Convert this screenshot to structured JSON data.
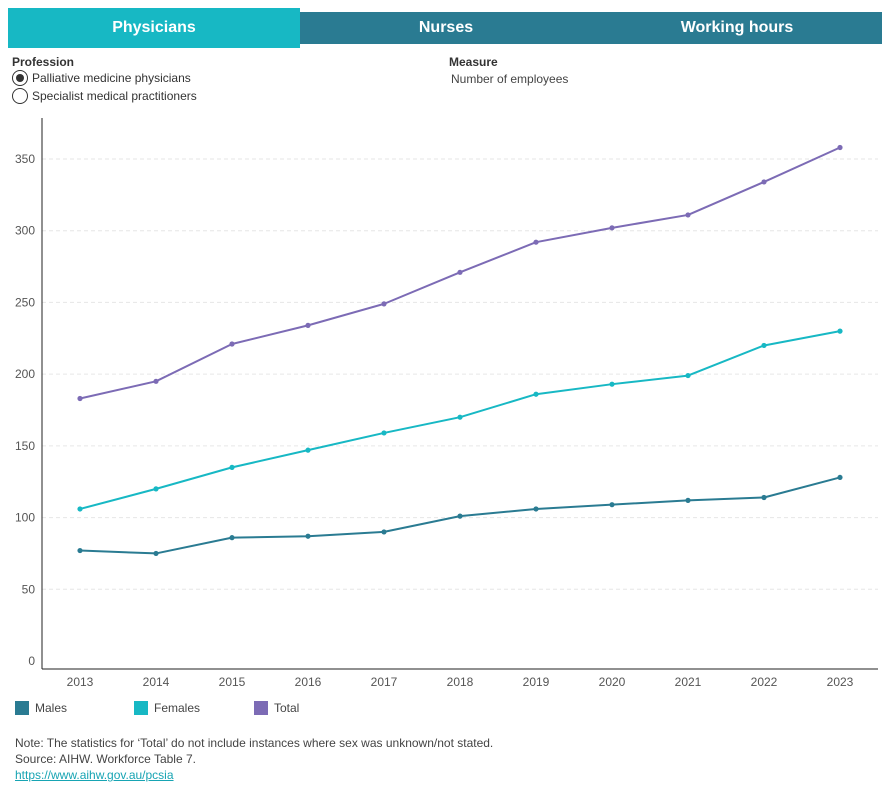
{
  "tabs": [
    {
      "label": "Physicians",
      "active": true
    },
    {
      "label": "Nurses",
      "active": false
    },
    {
      "label": "Working hours",
      "active": false
    }
  ],
  "profession": {
    "title": "Profession",
    "options": [
      {
        "label": "Palliative medicine physicians",
        "selected": true
      },
      {
        "label": "Specialist medical practitioners",
        "selected": false
      }
    ]
  },
  "measure": {
    "title": "Measure",
    "value": "Number of employees"
  },
  "colors": {
    "males": "#2a7b92",
    "females": "#17b8c4",
    "total": "#7c6bb5"
  },
  "chart_data": {
    "type": "line",
    "title": "",
    "xlabel": "",
    "ylabel": "",
    "ylim": [
      0,
      380
    ],
    "yticks": [
      0,
      50,
      100,
      150,
      200,
      250,
      300,
      350
    ],
    "grid": true,
    "legend": "bottom-left",
    "x": [
      "2013",
      "2014",
      "2015",
      "2016",
      "2017",
      "2018",
      "2019",
      "2020",
      "2021",
      "2022",
      "2023"
    ],
    "series": [
      {
        "name": "Males",
        "color": "#2a7b92",
        "values": [
          77,
          75,
          86,
          87,
          90,
          101,
          106,
          109,
          112,
          114,
          128
        ]
      },
      {
        "name": "Females",
        "color": "#17b8c4",
        "values": [
          106,
          120,
          135,
          147,
          159,
          170,
          186,
          193,
          199,
          220,
          230
        ]
      },
      {
        "name": "Total",
        "color": "#7c6bb5",
        "values": [
          183,
          195,
          221,
          234,
          249,
          271,
          292,
          302,
          311,
          334,
          358
        ]
      }
    ]
  },
  "notes": {
    "line1": "Note: The statistics for ‘Total’ do not include instances where sex was unknown/not stated.",
    "line2": "Source: AIHW. Workforce Table 7.",
    "link": "https://www.aihw.gov.au/pcsia"
  }
}
